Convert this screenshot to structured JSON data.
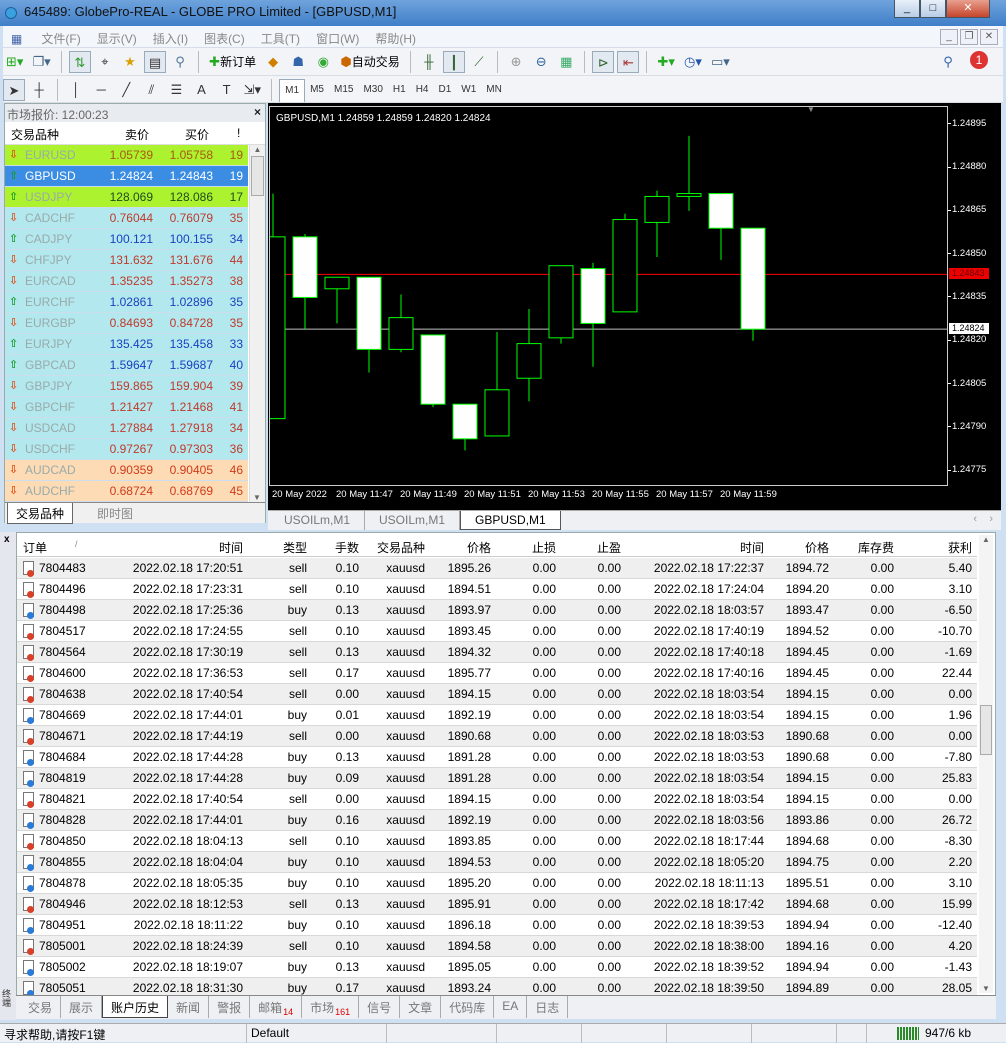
{
  "window": {
    "title": "645489: GlobePro-REAL - GLOBE PRO Limited - [GBPUSD,M1]",
    "minimize": "_",
    "maximize": "□",
    "close": "✕"
  },
  "menu": [
    "文件(F)",
    "显示(V)",
    "插入(I)",
    "图表(C)",
    "工具(T)",
    "窗口(W)",
    "帮助(H)"
  ],
  "toolbar": {
    "new_order": "新订单",
    "auto_trading": "自动交易",
    "notification_count": "1"
  },
  "periods": [
    "M1",
    "M5",
    "M15",
    "M30",
    "H1",
    "H4",
    "D1",
    "W1",
    "MN"
  ],
  "active_period": "M1",
  "market_watch": {
    "title": "市场报价: 12:00:23",
    "columns": [
      "交易品种",
      "卖价",
      "买价",
      "!"
    ],
    "rows": [
      {
        "symbol": "EURUSD",
        "bid": "1.05739",
        "ask": "1.05758",
        "spread": "19",
        "dir": "down",
        "bg": "#adf22e",
        "color": "#a85a10"
      },
      {
        "symbol": "GBPUSD",
        "bid": "1.24824",
        "ask": "1.24843",
        "spread": "19",
        "dir": "up",
        "bg": "#3a8de2",
        "color": "#ffffff"
      },
      {
        "symbol": "USDJPY",
        "bid": "128.069",
        "ask": "128.086",
        "spread": "17",
        "dir": "up",
        "bg": "#adf22e",
        "color": "#1d4d1d"
      },
      {
        "symbol": "CADCHF",
        "bid": "0.76044",
        "ask": "0.76079",
        "spread": "35",
        "dir": "down",
        "bg": "#b3e9ee",
        "color": "#c0392b"
      },
      {
        "symbol": "CADJPY",
        "bid": "100.121",
        "ask": "100.155",
        "spread": "34",
        "dir": "up",
        "bg": "#b3e9ee",
        "color": "#1a3fc0"
      },
      {
        "symbol": "CHFJPY",
        "bid": "131.632",
        "ask": "131.676",
        "spread": "44",
        "dir": "down",
        "bg": "#b3e9ee",
        "color": "#c0392b"
      },
      {
        "symbol": "EURCAD",
        "bid": "1.35235",
        "ask": "1.35273",
        "spread": "38",
        "dir": "down",
        "bg": "#b3e9ee",
        "color": "#c0392b"
      },
      {
        "symbol": "EURCHF",
        "bid": "1.02861",
        "ask": "1.02896",
        "spread": "35",
        "dir": "up",
        "bg": "#b3e9ee",
        "color": "#1a3fc0"
      },
      {
        "symbol": "EURGBP",
        "bid": "0.84693",
        "ask": "0.84728",
        "spread": "35",
        "dir": "down",
        "bg": "#b3e9ee",
        "color": "#c0392b"
      },
      {
        "symbol": "EURJPY",
        "bid": "135.425",
        "ask": "135.458",
        "spread": "33",
        "dir": "up",
        "bg": "#b3e9ee",
        "color": "#1a3fc0"
      },
      {
        "symbol": "GBPCAD",
        "bid": "1.59647",
        "ask": "1.59687",
        "spread": "40",
        "dir": "up",
        "bg": "#b3e9ee",
        "color": "#1a3fc0"
      },
      {
        "symbol": "GBPJPY",
        "bid": "159.865",
        "ask": "159.904",
        "spread": "39",
        "dir": "down",
        "bg": "#b3e9ee",
        "color": "#c0392b"
      },
      {
        "symbol": "GBPCHF",
        "bid": "1.21427",
        "ask": "1.21468",
        "spread": "41",
        "dir": "down",
        "bg": "#b3e9ee",
        "color": "#c0392b"
      },
      {
        "symbol": "USDCAD",
        "bid": "1.27884",
        "ask": "1.27918",
        "spread": "34",
        "dir": "down",
        "bg": "#b3e9ee",
        "color": "#c0392b"
      },
      {
        "symbol": "USDCHF",
        "bid": "0.97267",
        "ask": "0.97303",
        "spread": "36",
        "dir": "down",
        "bg": "#b3e9ee",
        "color": "#c0392b"
      },
      {
        "symbol": "AUDCAD",
        "bid": "0.90359",
        "ask": "0.90405",
        "spread": "46",
        "dir": "down",
        "bg": "#fddcb5",
        "color": "#d03a1a"
      },
      {
        "symbol": "AUDCHF",
        "bid": "0.68724",
        "ask": "0.68769",
        "spread": "45",
        "dir": "down",
        "bg": "#fddcb5",
        "color": "#d03a1a"
      }
    ],
    "tabs": [
      "交易品种",
      "即时图"
    ],
    "active_tab": "交易品种"
  },
  "chart_tabs": [
    "USOILm,M1",
    "USOILm,M1",
    "GBPUSD,M1"
  ],
  "active_chart_tab": "GBPUSD,M1",
  "chart_data": {
    "type": "candlestick",
    "title": "GBPUSD,M1  1.24859 1.24859 1.24820 1.24824",
    "x": [
      "11:45",
      "11:46",
      "11:47",
      "11:48",
      "11:49",
      "11:50",
      "11:51",
      "11:52",
      "11:53",
      "11:54",
      "11:55",
      "11:56",
      "11:57",
      "11:58",
      "11:59",
      "12:00"
    ],
    "open": [
      1.24793,
      1.24856,
      1.24838,
      1.24842,
      1.24817,
      1.24822,
      1.24798,
      1.24787,
      1.24807,
      1.24821,
      1.24845,
      1.2483,
      1.24861,
      1.2487,
      1.24871,
      1.24859
    ],
    "high": [
      1.24871,
      1.24857,
      1.24842,
      1.24842,
      1.24836,
      1.24822,
      1.24798,
      1.24823,
      1.24831,
      1.24846,
      1.24847,
      1.24864,
      1.24872,
      1.24891,
      1.24871,
      1.24859
    ],
    "low": [
      1.24793,
      1.24824,
      1.24826,
      1.24809,
      1.24816,
      1.24797,
      1.24782,
      1.24787,
      1.24799,
      1.24819,
      1.24811,
      1.2483,
      1.24849,
      1.24865,
      1.24848,
      1.2482
    ],
    "close": [
      1.24856,
      1.24835,
      1.24842,
      1.24817,
      1.24828,
      1.24798,
      1.24786,
      1.24803,
      1.24819,
      1.24846,
      1.24826,
      1.24862,
      1.2487,
      1.24871,
      1.24859,
      1.24824
    ],
    "x_tick_labels": [
      "20 May 2022",
      "20 May 11:47",
      "20 May 11:49",
      "20 May 11:51",
      "20 May 11:53",
      "20 May 11:55",
      "20 May 11:57",
      "20 May 11:59"
    ],
    "y_ticks": [
      "1.24895",
      "1.24880",
      "1.24865",
      "1.24850",
      "1.24835",
      "1.24820",
      "1.24805",
      "1.24790",
      "1.24775"
    ],
    "ylim": [
      1.2477,
      1.24901
    ],
    "bid_line": "1.24824",
    "ask_line": "1.24843",
    "grid": false,
    "colors": {
      "background": "#000000",
      "bull_body": "#000000",
      "bear_body": "#ffffff",
      "wick": "#00ff00",
      "bid_line": "#c0c0c0",
      "ask_line": "#ff0000"
    }
  },
  "terminal": {
    "label": "终端",
    "columns": [
      "订单",
      "/",
      "时间",
      "类型",
      "手数",
      "交易品种",
      "价格",
      "止损",
      "止盈",
      "时间",
      "价格",
      "库存费",
      "获利"
    ],
    "rows": [
      [
        "7804483",
        "2022.02.18 17:20:51",
        "sell",
        "0.10",
        "xauusd",
        "1895.26",
        "0.00",
        "0.00",
        "2022.02.18 17:22:37",
        "1894.72",
        "0.00",
        "5.40"
      ],
      [
        "7804496",
        "2022.02.18 17:23:31",
        "sell",
        "0.10",
        "xauusd",
        "1894.51",
        "0.00",
        "0.00",
        "2022.02.18 17:24:04",
        "1894.20",
        "0.00",
        "3.10"
      ],
      [
        "7804498",
        "2022.02.18 17:25:36",
        "buy",
        "0.13",
        "xauusd",
        "1893.97",
        "0.00",
        "0.00",
        "2022.02.18 18:03:57",
        "1893.47",
        "0.00",
        "-6.50"
      ],
      [
        "7804517",
        "2022.02.18 17:24:55",
        "sell",
        "0.10",
        "xauusd",
        "1893.45",
        "0.00",
        "0.00",
        "2022.02.18 17:40:19",
        "1894.52",
        "0.00",
        "-10.70"
      ],
      [
        "7804564",
        "2022.02.18 17:30:19",
        "sell",
        "0.13",
        "xauusd",
        "1894.32",
        "0.00",
        "0.00",
        "2022.02.18 17:40:18",
        "1894.45",
        "0.00",
        "-1.69"
      ],
      [
        "7804600",
        "2022.02.18 17:36:53",
        "sell",
        "0.17",
        "xauusd",
        "1895.77",
        "0.00",
        "0.00",
        "2022.02.18 17:40:16",
        "1894.45",
        "0.00",
        "22.44"
      ],
      [
        "7804638",
        "2022.02.18 17:40:54",
        "sell",
        "0.00",
        "xauusd",
        "1894.15",
        "0.00",
        "0.00",
        "2022.02.18 18:03:54",
        "1894.15",
        "0.00",
        "0.00"
      ],
      [
        "7804669",
        "2022.02.18 17:44:01",
        "buy",
        "0.01",
        "xauusd",
        "1892.19",
        "0.00",
        "0.00",
        "2022.02.18 18:03:54",
        "1894.15",
        "0.00",
        "1.96"
      ],
      [
        "7804671",
        "2022.02.18 17:44:19",
        "sell",
        "0.00",
        "xauusd",
        "1890.68",
        "0.00",
        "0.00",
        "2022.02.18 18:03:53",
        "1890.68",
        "0.00",
        "0.00"
      ],
      [
        "7804684",
        "2022.02.18 17:44:28",
        "buy",
        "0.13",
        "xauusd",
        "1891.28",
        "0.00",
        "0.00",
        "2022.02.18 18:03:53",
        "1890.68",
        "0.00",
        "-7.80"
      ],
      [
        "7804819",
        "2022.02.18 17:44:28",
        "buy",
        "0.09",
        "xauusd",
        "1891.28",
        "0.00",
        "0.00",
        "2022.02.18 18:03:54",
        "1894.15",
        "0.00",
        "25.83"
      ],
      [
        "7804821",
        "2022.02.18 17:40:54",
        "sell",
        "0.00",
        "xauusd",
        "1894.15",
        "0.00",
        "0.00",
        "2022.02.18 18:03:54",
        "1894.15",
        "0.00",
        "0.00"
      ],
      [
        "7804828",
        "2022.02.18 17:44:01",
        "buy",
        "0.16",
        "xauusd",
        "1892.19",
        "0.00",
        "0.00",
        "2022.02.18 18:03:56",
        "1893.86",
        "0.00",
        "26.72"
      ],
      [
        "7804850",
        "2022.02.18 18:04:13",
        "sell",
        "0.10",
        "xauusd",
        "1893.85",
        "0.00",
        "0.00",
        "2022.02.18 18:17:44",
        "1894.68",
        "0.00",
        "-8.30"
      ],
      [
        "7804855",
        "2022.02.18 18:04:04",
        "buy",
        "0.10",
        "xauusd",
        "1894.53",
        "0.00",
        "0.00",
        "2022.02.18 18:05:20",
        "1894.75",
        "0.00",
        "2.20"
      ],
      [
        "7804878",
        "2022.02.18 18:05:35",
        "buy",
        "0.10",
        "xauusd",
        "1895.20",
        "0.00",
        "0.00",
        "2022.02.18 18:11:13",
        "1895.51",
        "0.00",
        "3.10"
      ],
      [
        "7804946",
        "2022.02.18 18:12:53",
        "sell",
        "0.13",
        "xauusd",
        "1895.91",
        "0.00",
        "0.00",
        "2022.02.18 18:17:42",
        "1894.68",
        "0.00",
        "15.99"
      ],
      [
        "7804951",
        "2022.02.18 18:11:22",
        "buy",
        "0.10",
        "xauusd",
        "1896.18",
        "0.00",
        "0.00",
        "2022.02.18 18:39:53",
        "1894.94",
        "0.00",
        "-12.40"
      ],
      [
        "7805001",
        "2022.02.18 18:24:39",
        "sell",
        "0.10",
        "xauusd",
        "1894.58",
        "0.00",
        "0.00",
        "2022.02.18 18:38:00",
        "1894.16",
        "0.00",
        "4.20"
      ],
      [
        "7805002",
        "2022.02.18 18:19:07",
        "buy",
        "0.13",
        "xauusd",
        "1895.05",
        "0.00",
        "0.00",
        "2022.02.18 18:39:52",
        "1894.94",
        "0.00",
        "-1.43"
      ],
      [
        "7805051",
        "2022.02.18 18:31:30",
        "buy",
        "0.17",
        "xauusd",
        "1893.24",
        "0.00",
        "0.00",
        "2022.02.18 18:39:50",
        "1894.89",
        "0.00",
        "28.05"
      ]
    ],
    "tabs": [
      {
        "label": "交易"
      },
      {
        "label": "展示"
      },
      {
        "label": "账户历史"
      },
      {
        "label": "新闻"
      },
      {
        "label": "警报"
      },
      {
        "label": "邮箱",
        "badge": "14"
      },
      {
        "label": "市场",
        "badge": "161"
      },
      {
        "label": "信号"
      },
      {
        "label": "文章"
      },
      {
        "label": "代码库"
      },
      {
        "label": "EA"
      },
      {
        "label": "日志"
      }
    ],
    "active_tab": "账户历史"
  },
  "status": {
    "help": "寻求帮助,请按F1键",
    "profile": "Default",
    "connection": "947/6 kb"
  }
}
